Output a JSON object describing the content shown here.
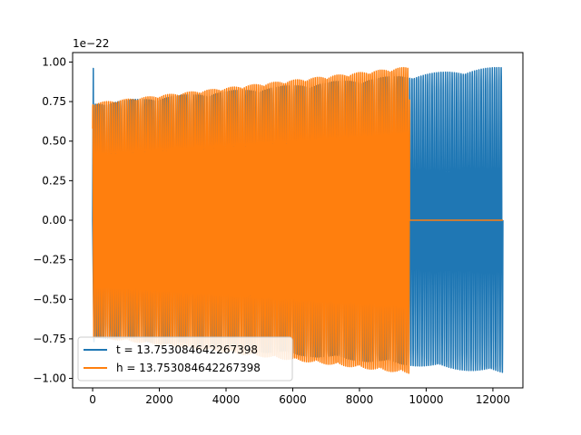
{
  "chart_data": {
    "type": "line",
    "title": "",
    "xlabel": "",
    "ylabel": "",
    "y_offset_label": "1e−22",
    "xlim": [
      -600,
      12900
    ],
    "ylim": [
      -1.06,
      1.06
    ],
    "x_ticks": [
      0,
      2000,
      4000,
      6000,
      8000,
      10000,
      12000
    ],
    "x_tick_labels": [
      "0",
      "2000",
      "4000",
      "6000",
      "8000",
      "10000",
      "12000"
    ],
    "y_ticks": [
      1.0,
      0.75,
      0.5,
      0.25,
      0.0,
      -0.25,
      -0.5,
      -0.75,
      -1.0
    ],
    "y_tick_labels": [
      "1.00",
      "0.75",
      "0.50",
      "0.25",
      "0.00",
      "−0.25",
      "−0.50",
      "−0.75",
      "−1.00"
    ],
    "grid": false,
    "legend_position": "lower-left",
    "series": [
      {
        "name": "t = 13.753084642267398",
        "color": "#1f77b4",
        "x_start": 0,
        "x_end": 12300,
        "initial_spike": 0.96,
        "amplitude_start": 0.74,
        "amplitude_end": 0.97,
        "cycles": 160,
        "samples": 2400
      },
      {
        "name": "h = 13.753084642267398",
        "color": "#ff7f0e",
        "x_start": 0,
        "x_end": 9500,
        "flat_until": 12300,
        "amplitude_start": 0.74,
        "amplitude_end": 0.97,
        "cycles": 140,
        "samples": 2400
      }
    ]
  }
}
